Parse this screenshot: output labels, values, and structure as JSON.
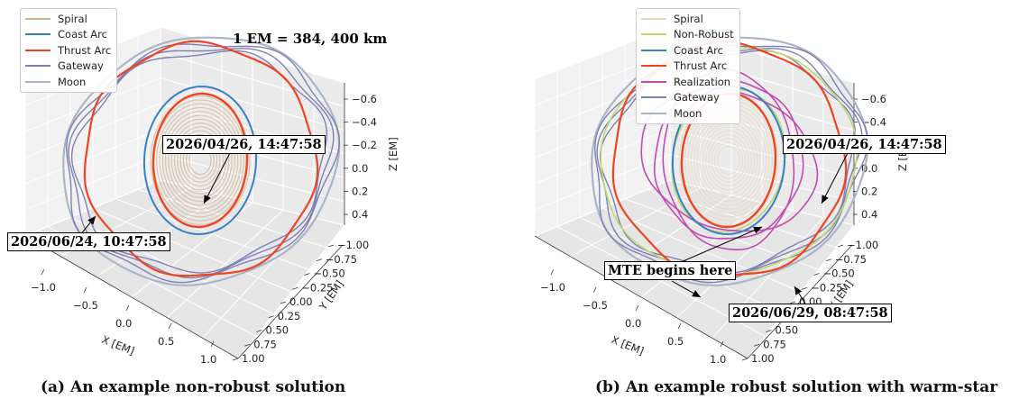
{
  "chart_data": [
    {
      "type": "line",
      "projection": "3d",
      "caption": "(a) An example non-robust solution",
      "xlabel": "X [EM]",
      "ylabel": "Y [EM]",
      "zlabel": "Z [EM]",
      "xticks": [
        "−1.0",
        "−0.5",
        "0.0",
        "0.5",
        "1.0"
      ],
      "yticks": [
        "−1.00",
        "−0.75",
        "−0.50",
        "−0.25",
        "0.00",
        "0.25",
        "0.50",
        "0.75",
        "1.00"
      ],
      "zticks": [
        "−0.6",
        "−0.4",
        "−0.2",
        "0.0",
        "0.2",
        "0.4"
      ],
      "xlim": [
        -1.0,
        1.0
      ],
      "ylim": [
        -1.0,
        1.0
      ],
      "zlim": [
        -0.6,
        0.4
      ],
      "grid": true,
      "legend_position": "top-left",
      "scale_note": "1 EM = 384, 400 km",
      "series": [
        {
          "name": "Spiral",
          "color": "#d2b48c"
        },
        {
          "name": "Coast Arc",
          "color": "#3a7ec6"
        },
        {
          "name": "Thrust Arc",
          "color": "#ee4422"
        },
        {
          "name": "Gateway",
          "color": "#7e7fb5"
        },
        {
          "name": "Moon",
          "color": "#a9b6c8"
        }
      ],
      "annotations": [
        "2026/04/26, 14:47:58",
        "2026/06/24, 10:47:58"
      ]
    },
    {
      "type": "line",
      "projection": "3d",
      "caption": "(b) An example robust solution with warm-star",
      "xlabel": "X [EM]",
      "ylabel": "Y [EM]",
      "zlabel": "Z [EM]",
      "xticks": [
        "−1.0",
        "−0.5",
        "0.0",
        "0.5",
        "1.0"
      ],
      "yticks": [
        "−1.00",
        "−0.75",
        "−0.50",
        "−0.25",
        "0.00",
        "0.25",
        "0.50",
        "0.75",
        "1.00"
      ],
      "zticks": [
        "−0.6",
        "−0.4",
        "−0.2",
        "0.0",
        "0.2",
        "0.4"
      ],
      "xlim": [
        -1.0,
        1.0
      ],
      "ylim": [
        -1.0,
        1.0
      ],
      "zlim": [
        -0.6,
        0.4
      ],
      "grid": true,
      "legend_position": "top-left",
      "series": [
        {
          "name": "Spiral",
          "color": "#e8d9c0"
        },
        {
          "name": "Non-Robust",
          "color": "#bcd86a"
        },
        {
          "name": "Coast Arc",
          "color": "#3a7ec6"
        },
        {
          "name": "Thrust Arc",
          "color": "#ee4422"
        },
        {
          "name": "Realization",
          "color": "#c14ab0"
        },
        {
          "name": "Gateway",
          "color": "#7e7fb5"
        },
        {
          "name": "Moon",
          "color": "#a9b6c8"
        }
      ],
      "annotations": [
        "2026/04/26, 14:47:58",
        "MTE begins here",
        "2026/06/29, 08:47:58"
      ]
    }
  ]
}
